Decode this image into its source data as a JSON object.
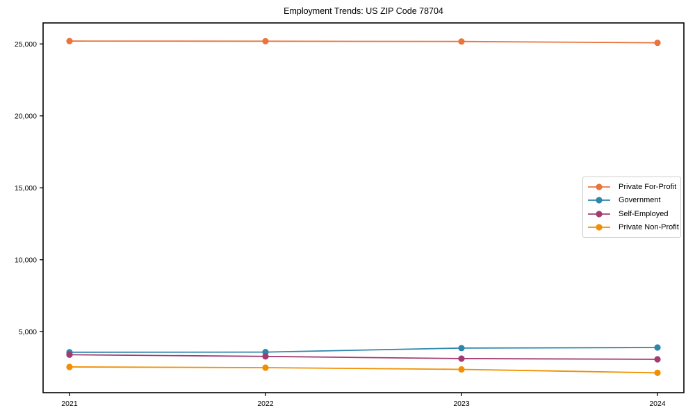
{
  "chart_data": {
    "type": "line",
    "title": "Employment Trends: US ZIP Code 78704",
    "categories": [
      "2021",
      "2022",
      "2023",
      "2024"
    ],
    "series": [
      {
        "name": "Private For-Profit",
        "color": "#e8753c",
        "values": [
          25200,
          25190,
          25170,
          25080
        ]
      },
      {
        "name": "Government",
        "color": "#2e86ab",
        "values": [
          3570,
          3580,
          3860,
          3900
        ]
      },
      {
        "name": "Self-Employed",
        "color": "#a23b72",
        "values": [
          3400,
          3280,
          3130,
          3080
        ]
      },
      {
        "name": "Private Non-Profit",
        "color": "#f18f01",
        "values": [
          2550,
          2500,
          2380,
          2140
        ]
      }
    ],
    "yticks": [
      5000,
      10000,
      15000,
      20000,
      25000
    ],
    "ytick_labels": [
      "5,000",
      "10,000",
      "15,000",
      "20,000",
      "25,000"
    ],
    "ylim": [
      760,
      26460
    ],
    "grid": false,
    "legend_position": "center-right",
    "axis_color": "#000000",
    "background": "#ffffff"
  }
}
